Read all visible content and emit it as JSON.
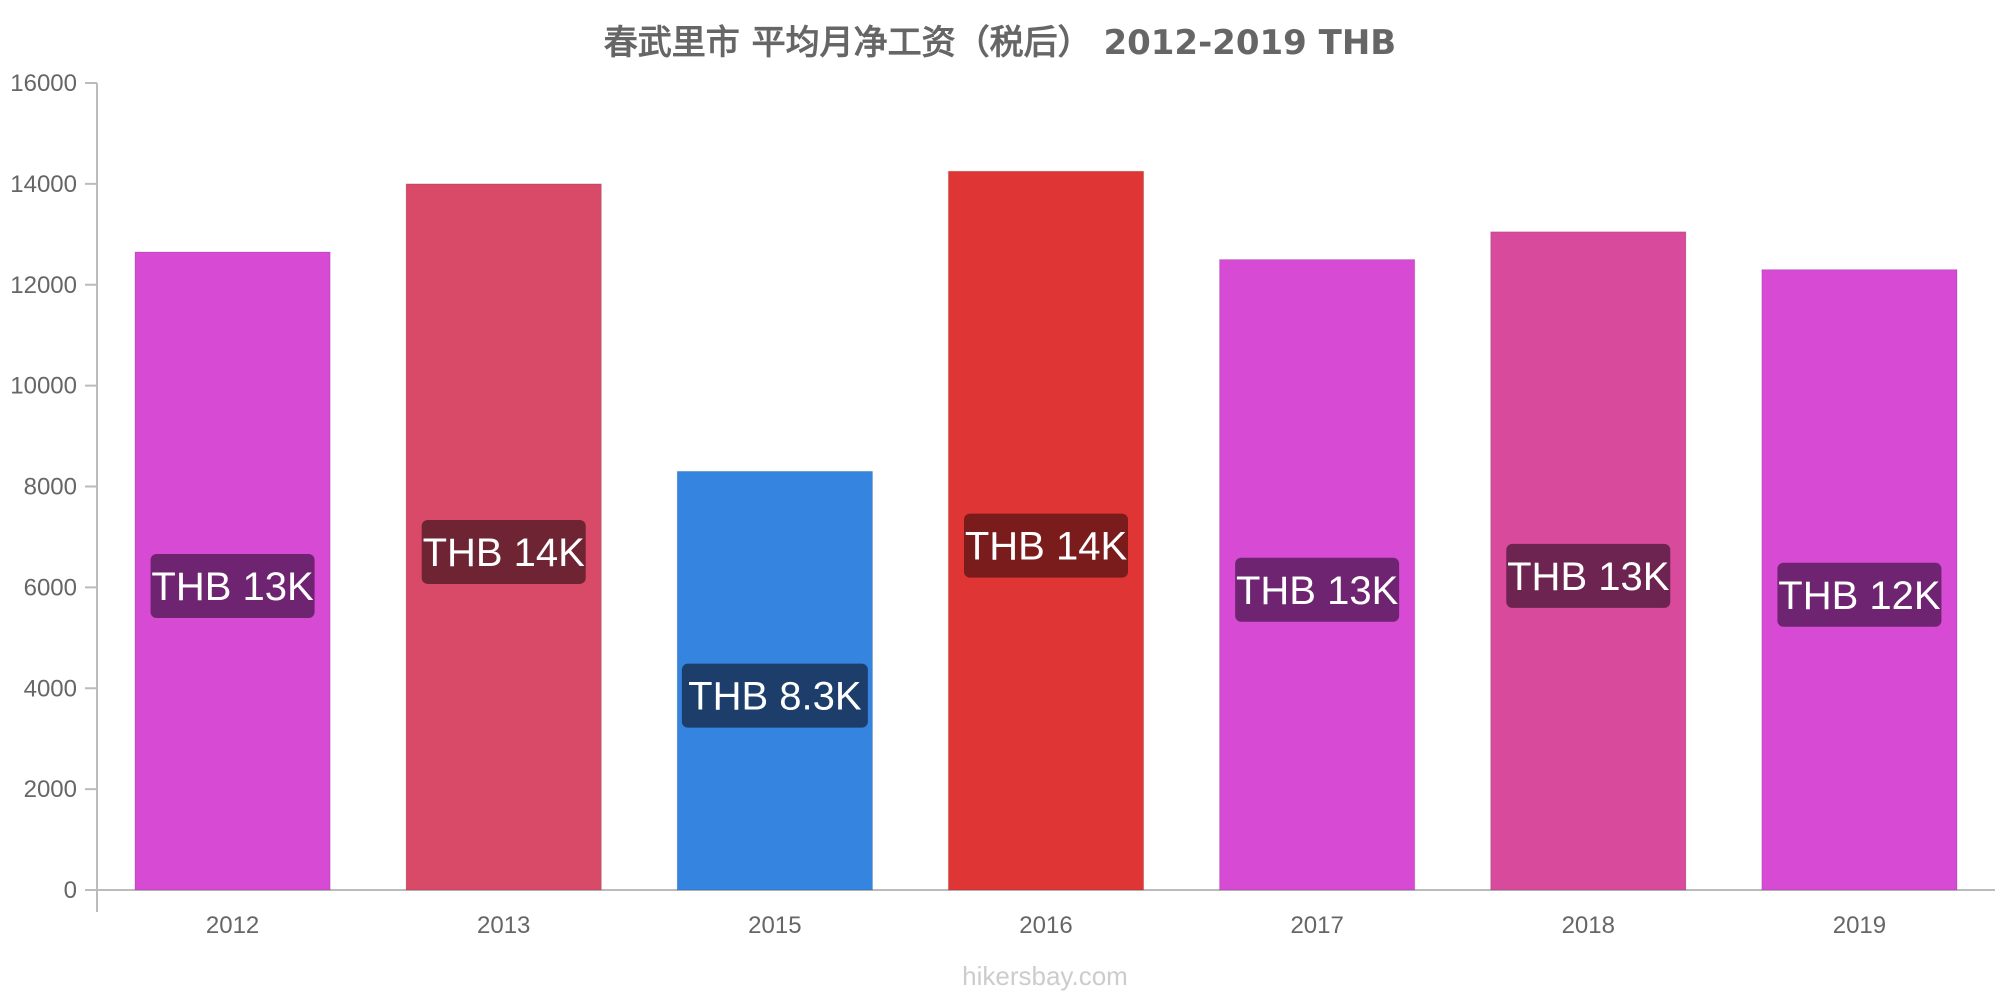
{
  "chart_data": {
    "type": "bar",
    "title": "春武里市 平均月净工资（税后） 2012-2019 THB",
    "categories": [
      "2012",
      "2013",
      "2015",
      "2016",
      "2017",
      "2018",
      "2019"
    ],
    "values": [
      12650,
      14000,
      8300,
      14250,
      12500,
      13050,
      12300
    ],
    "data_labels": [
      "THB 13K",
      "THB 14K",
      "THB 8.3K",
      "THB 14K",
      "THB 13K",
      "THB 13K",
      "THB 12K"
    ],
    "bar_colors": [
      "#d64ad4",
      "#d84a68",
      "#3584df",
      "#e03535",
      "#d64ad4",
      "#d84a9b",
      "#d64ad4"
    ],
    "label_bg_colors": [
      "#6e2470",
      "#6f2433",
      "#1d3e6b",
      "#7a1c1c",
      "#6e2470",
      "#6e2450",
      "#6e2470"
    ],
    "ylim": [
      0,
      16000
    ],
    "yticks": [
      0,
      2000,
      4000,
      6000,
      8000,
      10000,
      12000,
      14000,
      16000
    ],
    "grid": false,
    "xlabel": "",
    "ylabel": ""
  },
  "watermark": "hikersbay.com"
}
